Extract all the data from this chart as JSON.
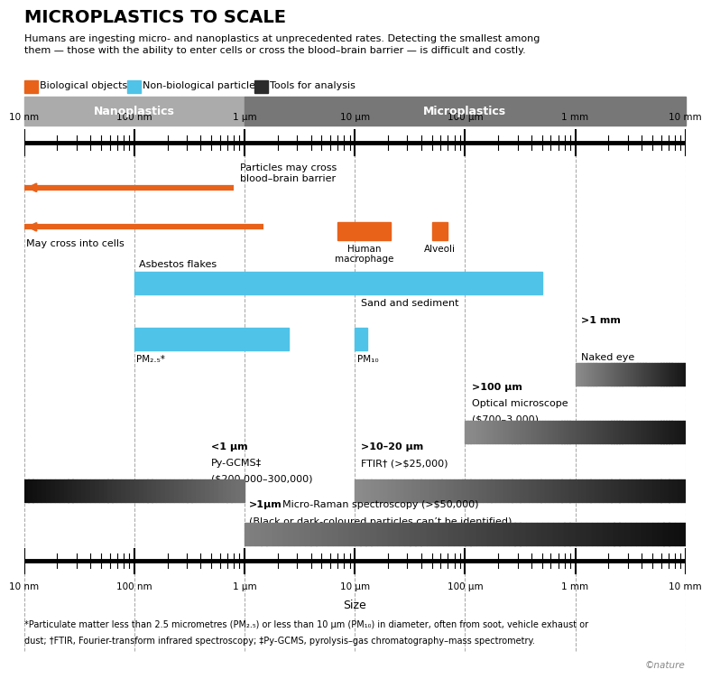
{
  "title": "MICROPLASTICS TO SCALE",
  "subtitle": "Humans are ingesting micro- and nanoplastics at unprecedented rates. Detecting the smallest among\nthem — those with the ability to enter cells or cross the blood–brain barrier — is difficult and costly.",
  "legend": [
    {
      "label": "Biological objects",
      "color": "#E8621A"
    },
    {
      "label": "Non-biological particles",
      "color": "#4FC3E8"
    },
    {
      "label": "Tools for analysis",
      "color": "#2B2B2B"
    }
  ],
  "tick_labels": [
    "10 nm",
    "100 nm",
    "1 μm",
    "10 μm",
    "100 μm",
    "1 mm",
    "10 mm"
  ],
  "nano_label": "Nanoplastics",
  "micro_label": "Microplastics",
  "nano_color": "#AAAAAA",
  "micro_color": "#888888",
  "bg_color": "#FFFFFF",
  "orange": "#E8621A",
  "blue": "#4FC3E8",
  "footnote_line1": "*Particulate matter less than 2.5 micrometres (PM₂.₅) or less than 10 μm (PM₁₀) in diameter, often from soot, vehicle exhaust or",
  "footnote_line2": "dust; †FTIR, Fourier-transform infrared spectroscopy; ‡Py-GCMS, pyrolysis–gas chromatography–mass spectrometry.",
  "nature_text": "©nature",
  "xlabel": "Size"
}
